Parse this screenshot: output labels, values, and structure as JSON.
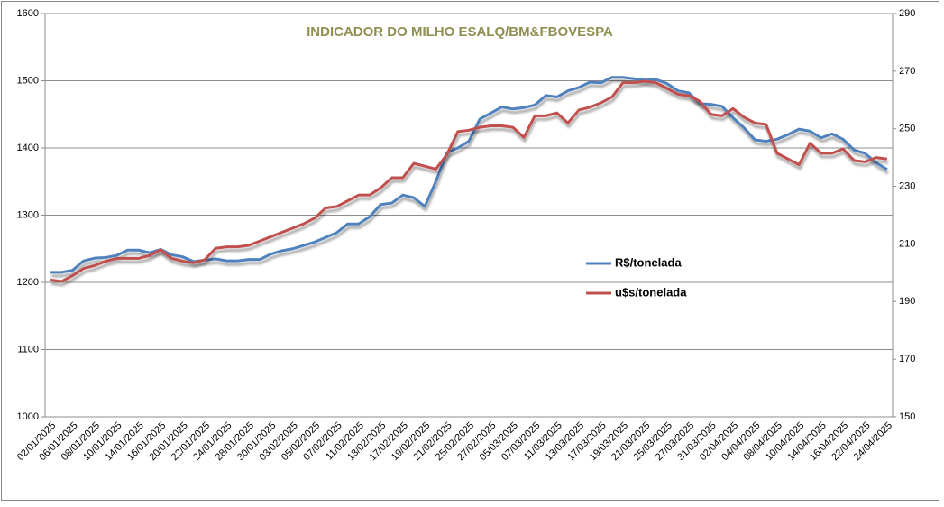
{
  "chart_data": {
    "type": "line",
    "title": "INDICADOR DO MILHO ESALQ/BM&FBOVESPA",
    "categories": [
      "02/01/2025",
      null,
      "06/01/2025",
      null,
      "08/01/2025",
      null,
      "10/01/2025",
      null,
      "14/01/2025",
      null,
      "16/01/2025",
      null,
      "20/01/2025",
      null,
      "22/01/2025",
      null,
      "24/01/2025",
      null,
      "28/01/2025",
      null,
      "30/01/2025",
      null,
      "03/02/2025",
      null,
      "05/02/2025",
      null,
      "07/02/2025",
      null,
      "11/02/2025",
      null,
      "13/02/2025",
      null,
      "17/02/2025",
      null,
      "19/02/2025",
      null,
      "21/02/2025",
      null,
      "25/02/2025",
      null,
      "27/02/2025",
      null,
      "05/03/2025",
      null,
      "07/03/2025",
      null,
      "11/03/2025",
      null,
      "13/03/2025",
      null,
      "17/03/2025",
      null,
      "19/03/2025",
      null,
      "21/03/2025",
      null,
      "25/03/2025",
      null,
      "27/03/2025",
      null,
      "31/03/2025",
      null,
      "02/04/2025",
      null,
      "04/04/2025",
      null,
      "08/04/2025",
      null,
      "10/04/2025",
      null,
      "14/04/2025",
      null,
      "16/04/2025",
      null,
      "22/04/2025",
      null,
      "24/04/2025"
    ],
    "series": [
      {
        "name": "R$/tonelada",
        "color": "#4f81bd",
        "axis": "y",
        "values": [
          1215,
          1215,
          1218,
          1232,
          1236,
          1237,
          1240,
          1248,
          1248,
          1244,
          1249,
          1241,
          1238,
          1231,
          1233,
          1235,
          1232,
          1232,
          1234,
          1234,
          1242,
          1247,
          1250,
          1255,
          1260,
          1267,
          1274,
          1287,
          1287,
          1298,
          1316,
          1318,
          1330,
          1326,
          1313,
          1350,
          1393,
          1400,
          1410,
          1443,
          1452,
          1461,
          1458,
          1460,
          1464,
          1478,
          1476,
          1485,
          1490,
          1498,
          1497,
          1505,
          1505,
          1503,
          1501,
          1502,
          1496,
          1485,
          1482,
          1466,
          1465,
          1462,
          1445,
          1430,
          1412,
          1410,
          1413,
          1420,
          1428,
          1425,
          1415,
          1421,
          1413,
          1397,
          1392,
          1378,
          1368
        ]
      },
      {
        "name": "u$s/tonelada",
        "color": "#c0504d",
        "axis": "y2",
        "values": [
          197.5,
          197,
          199,
          201.5,
          202.5,
          204,
          205,
          205,
          205,
          206,
          208,
          205,
          204,
          203.5,
          204.5,
          208.5,
          209,
          209,
          209.5,
          211,
          212.5,
          214,
          215.5,
          217,
          219,
          222.5,
          223,
          225,
          227,
          227,
          229.5,
          233,
          233,
          238,
          237,
          236,
          241,
          249,
          249.5,
          250.5,
          251,
          251,
          250.5,
          247,
          254.5,
          254.5,
          255.5,
          252,
          256.5,
          257.5,
          259,
          261,
          266,
          266,
          266.5,
          266,
          264,
          262,
          261.5,
          259.5,
          255,
          254.5,
          257,
          254,
          252,
          251.5,
          241.5,
          239.5,
          237.5,
          245,
          241.5,
          241.5,
          243,
          239,
          238.5,
          240,
          239.5
        ]
      }
    ],
    "ylim": [
      1000,
      1600
    ],
    "yticks": [
      1000,
      1100,
      1200,
      1300,
      1400,
      1500,
      1600
    ],
    "y2lim": [
      150,
      290
    ],
    "y2ticks": [
      150,
      170,
      190,
      210,
      230,
      250,
      270,
      290
    ],
    "grid": true,
    "legend": "right"
  }
}
